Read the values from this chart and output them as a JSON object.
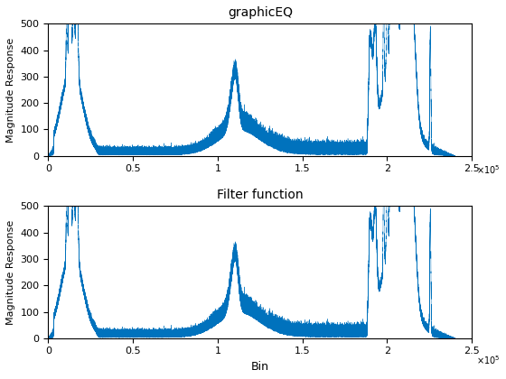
{
  "title1": "graphicEQ",
  "title2": "Filter function",
  "ylabel": "Magnitude Response",
  "xlabel": "Bin",
  "xlim": [
    0,
    250000
  ],
  "ylim": [
    0,
    500
  ],
  "xticks": [
    0,
    50000,
    100000,
    150000,
    200000,
    250000
  ],
  "xticklabels": [
    "0",
    "0.5",
    "1",
    "1.5",
    "2",
    "2.5"
  ],
  "yticks": [
    0,
    100,
    200,
    300,
    400,
    500
  ],
  "line_color": "#0072BD",
  "figsize": [
    5.6,
    4.2
  ],
  "dpi": 100,
  "n_points": 240000
}
